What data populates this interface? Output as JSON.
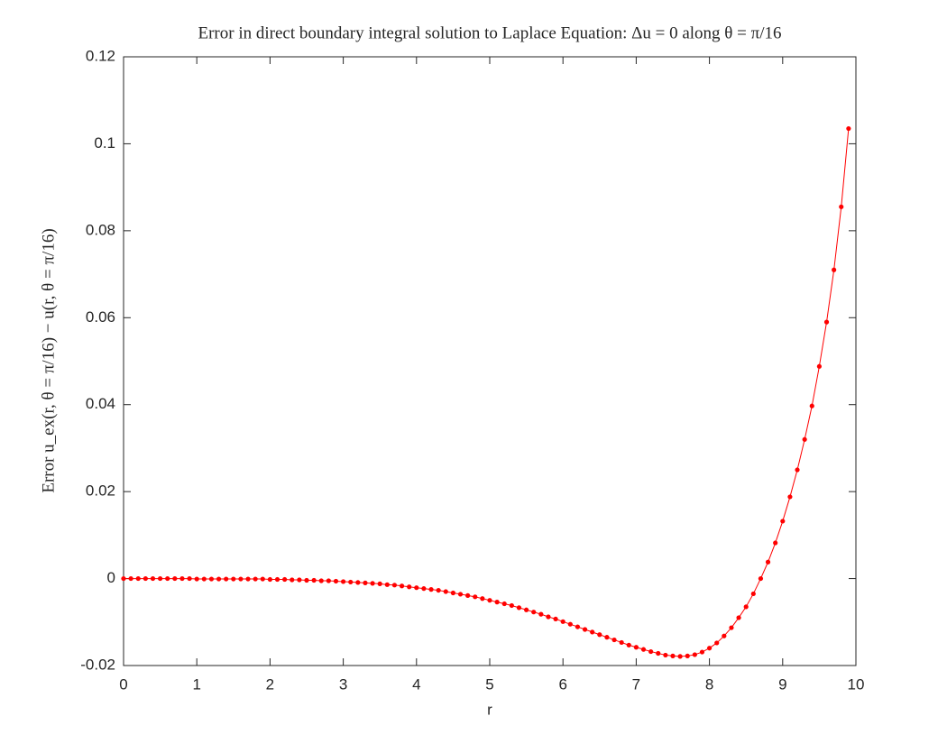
{
  "chart_data": {
    "type": "line",
    "title": "Error in direct boundary integral solution to Laplace Equation: Δu = 0 along θ = π/16",
    "xlabel": "r",
    "ylabel": "Error u_ex(r, θ = π/16) − u(r, θ = π/16)",
    "x": [
      0,
      0.1,
      0.2,
      0.3,
      0.4,
      0.5,
      0.6,
      0.7,
      0.8,
      0.9,
      1,
      1.1,
      1.2,
      1.3,
      1.4,
      1.5,
      1.6,
      1.7,
      1.8,
      1.9,
      2,
      2.1,
      2.2,
      2.3,
      2.4,
      2.5,
      2.6,
      2.7,
      2.8,
      2.9,
      3,
      3.1,
      3.2,
      3.3,
      3.4,
      3.5,
      3.6,
      3.7,
      3.8,
      3.9,
      4,
      4.1,
      4.2,
      4.3,
      4.4,
      4.5,
      4.6,
      4.7,
      4.8,
      4.9,
      5,
      5.1,
      5.2,
      5.3,
      5.4,
      5.5,
      5.6,
      5.7,
      5.8,
      5.9,
      6,
      6.1,
      6.2,
      6.3,
      6.4,
      6.5,
      6.6,
      6.7,
      6.8,
      6.9,
      7,
      7.1,
      7.2,
      7.3,
      7.4,
      7.5,
      7.6,
      7.7,
      7.8,
      7.9,
      8,
      8.1,
      8.2,
      8.3,
      8.4,
      8.5,
      8.6,
      8.7,
      8.8,
      8.9,
      9,
      9.1,
      9.2,
      9.3,
      9.4,
      9.5,
      9.6,
      9.7,
      9.8,
      9.9
    ],
    "values": [
      0,
      0,
      0,
      0,
      0,
      0,
      0,
      0,
      0,
      0,
      -0.0001,
      -0.0001,
      -0.0001,
      -0.0001,
      -0.0001,
      -0.0001,
      -0.0001,
      -0.0001,
      -0.0001,
      -0.0001,
      -0.0002,
      -0.0002,
      -0.0002,
      -0.0003,
      -0.0003,
      -0.0004,
      -0.0004,
      -0.0005,
      -0.0005,
      -0.0006,
      -0.0007,
      -0.0008,
      -0.0009,
      -0.001,
      -0.0011,
      -0.0012,
      -0.0014,
      -0.0015,
      -0.0017,
      -0.0019,
      -0.0021,
      -0.0023,
      -0.0025,
      -0.0027,
      -0.003,
      -0.0033,
      -0.0036,
      -0.0039,
      -0.0042,
      -0.0046,
      -0.005,
      -0.0054,
      -0.0058,
      -0.0062,
      -0.0067,
      -0.0072,
      -0.0077,
      -0.0082,
      -0.0088,
      -0.0093,
      -0.0099,
      -0.0105,
      -0.0111,
      -0.0117,
      -0.0123,
      -0.0129,
      -0.0135,
      -0.0141,
      -0.0147,
      -0.0153,
      -0.0158,
      -0.0163,
      -0.0168,
      -0.0172,
      -0.0176,
      -0.0178,
      -0.0179,
      -0.0178,
      -0.0175,
      -0.0169,
      -0.016,
      -0.0148,
      -0.0132,
      -0.0113,
      -0.009,
      -0.0065,
      -0.0035,
      0,
      0.0038,
      0.0082,
      0.0132,
      0.0188,
      0.025,
      0.032,
      0.0397,
      0.0488,
      0.059,
      0.071,
      0.0855,
      0.1035
    ],
    "color": "#ff0000",
    "xlim": [
      0,
      10
    ],
    "xticks": [
      0,
      1,
      2,
      3,
      4,
      5,
      6,
      7,
      8,
      9,
      10
    ],
    "ylim": [
      -0.02,
      0.12
    ],
    "yticks": [
      -0.02,
      0,
      0.02,
      0.04,
      0.06,
      0.08,
      0.1,
      0.12
    ],
    "grid": false
  }
}
